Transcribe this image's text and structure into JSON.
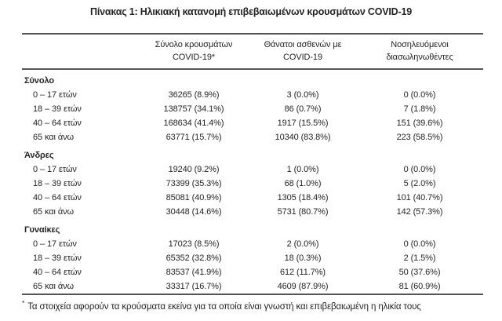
{
  "page": {
    "background_color": "#ffffff",
    "text_color": "#242424",
    "rule_color": "#555555"
  },
  "title": "Πίνακας 1: Ηλικιακή κατανομή επιβεβαιωμένων κρουσμάτων COVID-19",
  "table": {
    "column_headers": [
      {
        "line1": "Σύνολο κρουσμάτων",
        "line2": "COVID-19*"
      },
      {
        "line1": "Θάνατοι ασθενών με",
        "line2": "COVID-19"
      },
      {
        "line1": "Νοσηλευόμενοι",
        "line2": "διασωληνωθέντες"
      }
    ],
    "sections": [
      {
        "name": "Σύνολο",
        "rows": [
          {
            "age": "0 – 17 ετών",
            "cases": "36265 (8.9%)",
            "deaths": "3 (0.0%)",
            "intubated": "0 (0.0%)"
          },
          {
            "age": "18 – 39 ετών",
            "cases": "138757 (34.1%)",
            "deaths": "86 (0.7%)",
            "intubated": "7 (1.8%)"
          },
          {
            "age": "40 – 64 ετών",
            "cases": "168634 (41.4%)",
            "deaths": "1917 (15.5%)",
            "intubated": "151 (39.6%)"
          },
          {
            "age": "65 και άνω",
            "cases": "63771 (15.7%)",
            "deaths": "10340 (83.8%)",
            "intubated": "223 (58.5%)"
          }
        ]
      },
      {
        "name": "Άνδρες",
        "rows": [
          {
            "age": "0 – 17 ετών",
            "cases": "19240 (9.2%)",
            "deaths": "1 (0.0%)",
            "intubated": "0 (0.0%)"
          },
          {
            "age": "18 – 39 ετών",
            "cases": "73399 (35.3%)",
            "deaths": "68 (1.0%)",
            "intubated": "5 (2.0%)"
          },
          {
            "age": "40 – 64 ετών",
            "cases": "85081 (40.9%)",
            "deaths": "1305 (18.4%)",
            "intubated": "101 (40.7%)"
          },
          {
            "age": "65 και άνω",
            "cases": "30448 (14.6%)",
            "deaths": "5731 (80.7%)",
            "intubated": "142 (57.3%)"
          }
        ]
      },
      {
        "name": "Γυναίκες",
        "rows": [
          {
            "age": "0 – 17 ετών",
            "cases": "17023 (8.5%)",
            "deaths": "2 (0.0%)",
            "intubated": "0 (0.0%)"
          },
          {
            "age": "18 – 39 ετών",
            "cases": "65352 (32.8%)",
            "deaths": "18 (0.3%)",
            "intubated": "2 (1.5%)"
          },
          {
            "age": "40 – 64 ετών",
            "cases": "83537 (41.9%)",
            "deaths": "612 (11.7%)",
            "intubated": "50 (37.6%)"
          },
          {
            "age": "65 και άνω",
            "cases": "33317 (16.7%)",
            "deaths": "4609 (87.9%)",
            "intubated": "81 (60.9%)"
          }
        ]
      }
    ],
    "footnote_marker": "*",
    "footnote": "Τα στοιχεία αφορούν τα κρούσματα εκείνα για τα οποία είναι γνωστή και επιβεβαιωμένη η ηλικία τους"
  }
}
